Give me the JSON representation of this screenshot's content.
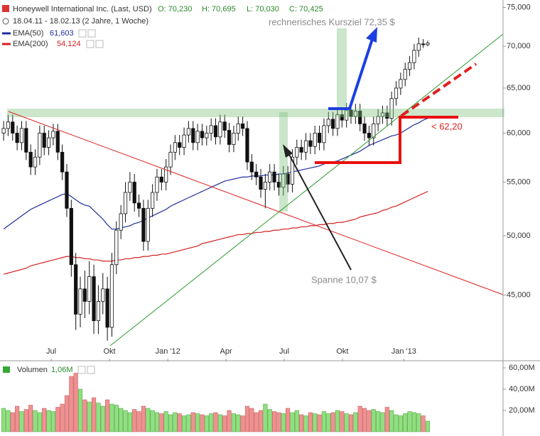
{
  "chart_data": {
    "type": "candlestick",
    "title": "Honeywell International Inc. (Last, USD)",
    "ohlc_labels": [
      "O: 70,230",
      "H: 70,695",
      "L: 70,030",
      "C: 70,425"
    ],
    "period": "18.04.11 - 18.02.13 (2 Jahre, 1 Woche)",
    "log_scale": true,
    "ylim": [
      40,
      76
    ],
    "yticks": [
      {
        "value": 75,
        "label": "75,000"
      },
      {
        "value": 70,
        "label": "70,000"
      },
      {
        "value": 65,
        "label": "65,000"
      },
      {
        "value": 60,
        "label": "60,000"
      },
      {
        "value": 55,
        "label": "55,000"
      },
      {
        "value": 50,
        "label": "50,000"
      },
      {
        "value": 45,
        "label": "45,000"
      }
    ],
    "xlim": [
      -0.8,
      110.7
    ],
    "xticks": [
      {
        "value": 10.55,
        "label": "Jul"
      },
      {
        "value": 23.46,
        "label": "Okt"
      },
      {
        "value": 36.4,
        "label": "Jan '12"
      },
      {
        "value": 49.3,
        "label": "Apr"
      },
      {
        "value": 62.2,
        "label": "Jul"
      },
      {
        "value": 75.1,
        "label": "Okt"
      },
      {
        "value": 88.7,
        "label": "Jan '13"
      }
    ],
    "open": [
      60.0,
      60.5,
      61.2,
      60.0,
      59.0,
      60.5,
      58.0,
      56.5,
      57.5,
      60.0,
      58.5,
      59.5,
      60.2,
      58.0,
      56.0,
      52.5,
      47.5,
      43.5,
      45.5,
      44.5,
      46.5,
      43.0,
      44.5,
      45.5,
      42.5,
      47.5,
      50.5,
      52.0,
      54.0,
      55.0,
      53.0,
      52.5,
      49.5,
      52.5,
      54.0,
      55.5,
      55.0,
      56.5,
      58.0,
      59.0,
      58.5,
      59.8,
      60.5,
      59.0,
      60.2,
      59.5,
      60.0,
      60.8,
      59.6,
      61.2,
      60.3,
      58.8,
      60.0,
      61.0,
      60.5,
      57.0,
      56.0,
      55.5,
      54.3,
      55.0,
      56.0,
      55.0,
      54.5,
      55.8,
      54.8,
      57.5,
      58.5,
      58.0,
      59.2,
      58.6,
      60.0,
      59.0,
      60.8,
      61.5,
      60.5,
      62.0,
      61.4,
      62.5,
      61.8,
      62.4,
      61.0,
      60.0,
      59.5,
      61.0,
      61.8,
      62.2,
      61.6,
      63.8,
      65.0,
      66.0,
      67.2,
      68.0,
      69.5,
      70.3,
      70.2
    ],
    "high": [
      61.3,
      62.0,
      62.0,
      60.8,
      61.3,
      61.3,
      58.8,
      58.3,
      60.8,
      60.8,
      60.3,
      61.0,
      61.0,
      58.8,
      56.8,
      53.3,
      48.5,
      46.5,
      47.0,
      47.8,
      47.5,
      45.8,
      46.8,
      46.5,
      48.5,
      51.3,
      52.8,
      55.0,
      56.0,
      55.8,
      53.8,
      53.3,
      53.3,
      54.8,
      56.3,
      56.3,
      57.3,
      58.8,
      59.8,
      59.8,
      60.6,
      61.3,
      61.3,
      61.0,
      61.0,
      60.8,
      61.6,
      61.6,
      62.0,
      62.0,
      61.1,
      60.8,
      61.8,
      61.8,
      61.3,
      57.8,
      56.8,
      56.3,
      55.8,
      56.8,
      56.8,
      55.8,
      56.6,
      56.6,
      58.3,
      59.3,
      59.3,
      60.0,
      60.0,
      60.8,
      60.8,
      61.6,
      62.3,
      62.3,
      62.8,
      62.8,
      63.3,
      63.3,
      63.2,
      63.2,
      61.8,
      60.8,
      61.8,
      62.6,
      63.0,
      63.0,
      64.6,
      65.8,
      66.8,
      68.0,
      68.8,
      70.3,
      71.1,
      70.9,
      70.7
    ],
    "low": [
      59.2,
      59.7,
      59.2,
      58.2,
      58.2,
      57.2,
      55.7,
      55.7,
      56.7,
      57.7,
      57.7,
      58.7,
      57.2,
      55.2,
      51.7,
      46.5,
      42.3,
      42.5,
      43.2,
      43.5,
      42.0,
      42.0,
      43.5,
      41.5,
      41.8,
      46.7,
      49.7,
      51.2,
      53.2,
      52.2,
      51.7,
      48.7,
      48.7,
      51.7,
      53.2,
      54.2,
      54.2,
      55.7,
      57.2,
      57.7,
      57.7,
      59.0,
      58.2,
      58.2,
      58.7,
      58.7,
      59.2,
      58.8,
      58.8,
      59.5,
      58.0,
      58.0,
      59.2,
      59.7,
      56.2,
      55.2,
      54.7,
      53.5,
      52.5,
      54.2,
      54.2,
      53.7,
      53.7,
      54.0,
      54.0,
      56.7,
      57.2,
      57.2,
      57.8,
      57.8,
      58.2,
      58.2,
      60.0,
      59.7,
      59.7,
      60.6,
      60.6,
      61.0,
      61.0,
      60.2,
      59.2,
      58.7,
      58.7,
      60.2,
      61.0,
      60.8,
      60.8,
      63.0,
      64.2,
      65.2,
      66.4,
      67.2,
      68.7,
      69.8,
      70.0
    ],
    "close": [
      60.5,
      61.2,
      60.0,
      59.0,
      60.5,
      58.0,
      56.5,
      57.5,
      60.0,
      58.5,
      59.5,
      60.2,
      58.0,
      56.0,
      52.5,
      47.5,
      43.5,
      45.5,
      44.5,
      46.5,
      43.0,
      44.5,
      45.5,
      42.5,
      47.5,
      50.5,
      52.0,
      54.0,
      55.0,
      53.0,
      52.5,
      49.5,
      52.5,
      54.0,
      55.5,
      55.0,
      56.5,
      58.0,
      59.0,
      58.5,
      59.8,
      60.5,
      59.0,
      60.2,
      59.5,
      60.0,
      60.8,
      59.6,
      61.2,
      60.3,
      58.8,
      60.0,
      61.0,
      60.5,
      57.0,
      56.0,
      55.5,
      54.3,
      55.0,
      56.0,
      55.0,
      54.5,
      55.8,
      54.8,
      57.5,
      58.5,
      58.0,
      59.2,
      58.6,
      60.0,
      59.0,
      60.8,
      61.5,
      60.5,
      62.0,
      61.4,
      62.5,
      61.8,
      62.4,
      61.0,
      60.0,
      59.5,
      61.0,
      61.8,
      62.2,
      61.6,
      63.8,
      65.0,
      66.0,
      67.2,
      68.0,
      69.5,
      70.3,
      70.2,
      70.4
    ],
    "series": [
      {
        "name": "EMA(50)",
        "color": "#1f2f9e",
        "last_label": "61,603",
        "values": [
          50.6,
          50.9,
          51.2,
          51.5,
          51.8,
          52.1,
          52.4,
          52.6,
          52.8,
          53.0,
          53.2,
          53.4,
          53.6,
          53.8,
          53.9,
          53.6,
          53.3,
          53.0,
          52.8,
          52.7,
          52.3,
          51.9,
          51.5,
          51.0,
          50.6,
          50.6,
          50.7,
          50.8,
          50.9,
          51.1,
          51.2,
          51.4,
          51.6,
          51.8,
          52.0,
          52.2,
          52.4,
          52.7,
          52.9,
          53.1,
          53.3,
          53.5,
          53.7,
          53.9,
          54.1,
          54.3,
          54.5,
          54.7,
          54.9,
          55.1,
          55.2,
          55.3,
          55.4,
          55.5,
          55.5,
          55.6,
          55.6,
          55.6,
          55.7,
          55.7,
          55.7,
          55.8,
          55.8,
          55.9,
          56.0,
          56.1,
          56.2,
          56.3,
          56.4,
          56.5,
          56.6,
          56.8,
          56.9,
          57.0,
          57.1,
          57.3,
          57.5,
          57.7,
          57.9,
          58.1,
          58.4,
          58.7,
          58.9,
          59.1,
          59.3,
          59.5,
          59.7,
          59.8,
          60.0,
          60.3,
          60.6,
          60.9,
          61.1,
          61.4,
          61.6
        ]
      },
      {
        "name": "EMA(200)",
        "color": "#d42020",
        "last_label": "54,124",
        "values": [
          46.7,
          46.8,
          46.9,
          47.0,
          47.1,
          47.2,
          47.4,
          47.5,
          47.6,
          47.7,
          47.8,
          47.9,
          48.0,
          48.1,
          48.2,
          48.2,
          48.1,
          48.1,
          48.0,
          48.0,
          47.9,
          47.9,
          47.8,
          47.8,
          47.8,
          47.9,
          47.9,
          48.0,
          48.0,
          48.1,
          48.1,
          48.2,
          48.2,
          48.3,
          48.3,
          48.4,
          48.4,
          48.5,
          48.6,
          48.7,
          48.8,
          48.9,
          49.0,
          49.1,
          49.3,
          49.4,
          49.5,
          49.6,
          49.7,
          49.8,
          49.9,
          50.0,
          50.1,
          50.1,
          50.2,
          50.2,
          50.3,
          50.3,
          50.4,
          50.4,
          50.5,
          50.5,
          50.6,
          50.6,
          50.7,
          50.7,
          50.8,
          50.8,
          50.9,
          50.9,
          51.0,
          51.0,
          51.1,
          51.1,
          51.2,
          51.2,
          51.3,
          51.4,
          51.5,
          51.7,
          51.8,
          51.9,
          52.0,
          52.1,
          52.3,
          52.4,
          52.6,
          52.7,
          52.9,
          53.1,
          53.3,
          53.5,
          53.7,
          53.9,
          54.1
        ]
      }
    ],
    "volume": {
      "name": "Volumen",
      "last_label": "1,06M",
      "up_color": "#8fe07f",
      "down_color": "#f09090",
      "ylim": [
        0,
        64
      ],
      "yticks": [
        {
          "value": 60,
          "label": "60,00M"
        },
        {
          "value": 40,
          "label": "40,00M"
        },
        {
          "value": 20,
          "label": "20,00M"
        }
      ],
      "values": [
        22,
        20,
        18,
        24,
        19,
        21,
        25,
        20,
        18,
        22,
        20,
        19,
        23,
        26,
        34,
        52,
        55,
        40,
        30,
        28,
        32,
        27,
        24,
        30,
        26,
        25,
        22,
        20,
        18,
        21,
        19,
        24,
        22,
        20,
        18,
        17,
        19,
        16,
        18,
        17,
        15,
        16,
        18,
        17,
        16,
        15,
        17,
        18,
        16,
        15,
        20,
        17,
        16,
        15,
        24,
        22,
        18,
        20,
        26,
        21,
        19,
        18,
        17,
        22,
        18,
        20,
        16,
        15,
        18,
        17,
        16,
        19,
        17,
        18,
        20,
        19,
        17,
        16,
        18,
        24,
        22,
        20,
        21,
        19,
        18,
        23,
        20,
        16,
        15,
        17,
        19,
        18,
        17,
        15,
        10
      ]
    },
    "annotations": [
      "rechnerisches Kursziel 72,35 $",
      "< 62,20",
      "Spanne 10,07 $"
    ]
  }
}
